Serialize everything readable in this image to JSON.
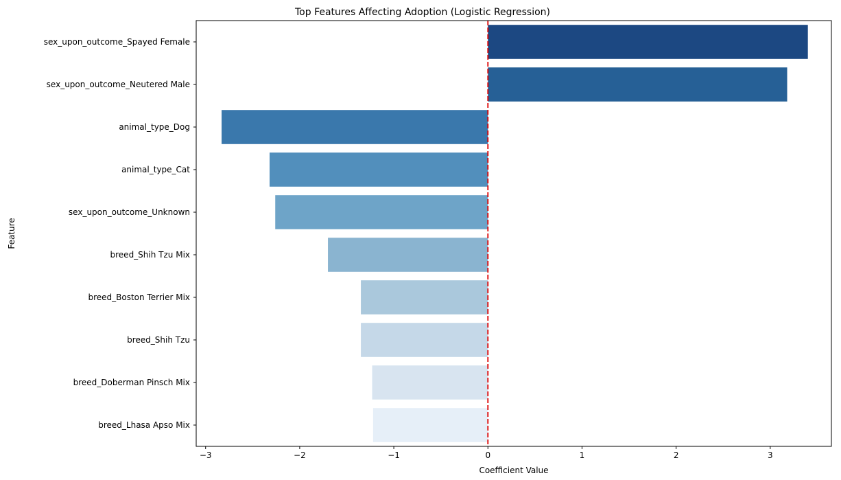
{
  "chart_data": {
    "type": "bar",
    "orientation": "horizontal",
    "title": "Top Features Affecting Adoption (Logistic Regression)",
    "xlabel": "Coefficient Value",
    "ylabel": "Feature",
    "xlim": [
      -3.1,
      3.65
    ],
    "xticks": [
      -3,
      -2,
      -1,
      0,
      1,
      2,
      3
    ],
    "xtick_labels": [
      "−3",
      "−2",
      "−1",
      "0",
      "1",
      "2",
      "3"
    ],
    "categories": [
      "sex_upon_outcome_Spayed Female",
      "sex_upon_outcome_Neutered Male",
      "animal_type_Dog",
      "animal_type_Cat",
      "sex_upon_outcome_Unknown",
      "breed_Shih Tzu Mix",
      "breed_Boston Terrier Mix",
      "breed_Shih Tzu",
      "breed_Doberman Pinsch Mix",
      "breed_Lhasa Apso Mix"
    ],
    "values": [
      3.4,
      3.18,
      -2.83,
      -2.32,
      -2.26,
      -1.7,
      -1.35,
      -1.35,
      -1.23,
      -1.22
    ],
    "bar_colors": [
      "#1c4882",
      "#266096",
      "#3a78ac",
      "#528fbc",
      "#6ea4c8",
      "#8ab4d0",
      "#aac8dc",
      "#c5d8e8",
      "#d8e4f0",
      "#e6eff8"
    ],
    "reference_line": {
      "x": 0,
      "color": "#dd0000",
      "style": "dashed"
    },
    "grid": false,
    "legend": "none"
  }
}
